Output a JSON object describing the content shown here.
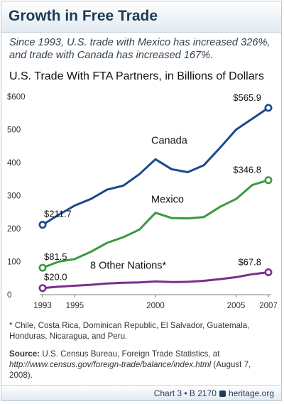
{
  "header": {
    "title": "Growth in Free Trade",
    "subtitle": "Since 1993, U.S. trade with Mexico has increased 326%, and trade with Canada has increased 167%."
  },
  "chart_data": {
    "type": "line",
    "title": "U.S. Trade With FTA Partners, in Billions of Dollars",
    "xlabel": "",
    "ylabel": "",
    "xlim": [
      1993,
      2007
    ],
    "ylim": [
      0,
      600
    ],
    "grid": false,
    "legend": "inline labels",
    "y_ticks": [
      0,
      100,
      200,
      300,
      400,
      500,
      600
    ],
    "y_tick_labels": [
      "0",
      "100",
      "200",
      "300",
      "400",
      "500",
      "$600"
    ],
    "x_ticks": [
      1993,
      1995,
      2000,
      2005,
      2007
    ],
    "x_tick_labels": [
      "1993",
      "1995",
      "2000",
      "2005",
      "2007"
    ],
    "x": [
      1993,
      1994,
      1995,
      1996,
      1997,
      1998,
      1999,
      2000,
      2001,
      2002,
      2003,
      2004,
      2005,
      2006,
      2007
    ],
    "series": [
      {
        "name": "Canada",
        "color": "#1b4a8c",
        "values": [
          211.7,
          242,
          270,
          290,
          318,
          330,
          365,
          410,
          380,
          371,
          392,
          445,
          500,
          533,
          565.9
        ],
        "label_start": "$211.7",
        "label_end": "$565.9"
      },
      {
        "name": "Mexico",
        "color": "#3a9a3f",
        "values": [
          81.5,
          100,
          108,
          130,
          157,
          174,
          197,
          248,
          232,
          231,
          235,
          266,
          290,
          332,
          346.8
        ],
        "label_start": "$81.5",
        "label_end": "$346.8"
      },
      {
        "name": "8 Other Nations*",
        "color": "#7a2e8e",
        "values": [
          20.0,
          24,
          27,
          30,
          34,
          36,
          37,
          40,
          38,
          39,
          42,
          47,
          53,
          62,
          67.8
        ],
        "label_start": "$20.0",
        "label_end": "$67.8"
      }
    ]
  },
  "footnote": "* Chile, Costa Rica, Dominican Republic, El Salvador, Guatemala, Honduras, Nicaragua, and Peru.",
  "source": {
    "label": "Source:",
    "text": " U.S. Census Bureau, Foreign Trade Statistics, at ",
    "url": "http://www.census.gov/foreign-trade/balance/index.html",
    "date": " (August 7, 2008)."
  },
  "footer": {
    "chart_id": "Chart 3 • B 2170",
    "site": "heritage.org"
  }
}
